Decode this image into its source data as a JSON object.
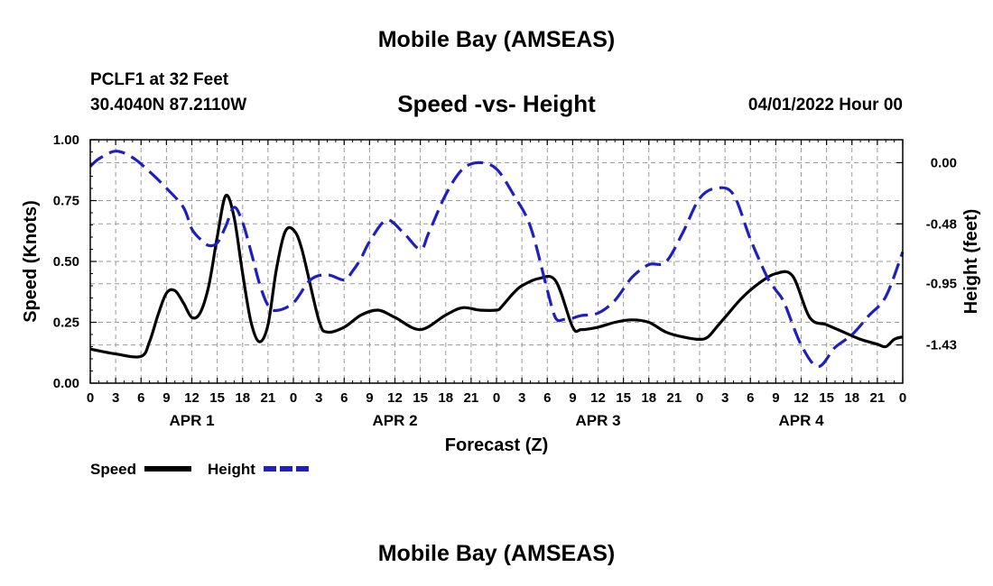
{
  "page": {
    "title_top": "Mobile Bay (AMSEAS)",
    "title_bottom": "Mobile Bay (AMSEAS)",
    "station": "PCLF1 at 32 Feet",
    "coords": "30.4040N  87.2110W",
    "datetime": "04/01/2022 Hour 00"
  },
  "colors": {
    "speed": "#000000",
    "height": "#1f1fc0",
    "grid": "#9a9a9a"
  },
  "chart_data": {
    "type": "line",
    "title": "Speed -vs- Height",
    "xlabel": "Forecast (Z)",
    "ylabel_left": "Speed (Knots)",
    "ylabel_right": "Height (feet)",
    "x_unit": "forecast hour",
    "xlim": [
      0,
      96
    ],
    "ylim_left": [
      0,
      1.0
    ],
    "ylim_right": [
      -1.73,
      0.18
    ],
    "x_ticks": [
      0,
      3,
      6,
      9,
      12,
      15,
      18,
      21,
      24,
      27,
      30,
      33,
      36,
      39,
      42,
      45,
      48,
      51,
      54,
      57,
      60,
      63,
      66,
      69,
      72,
      75,
      78,
      81,
      84,
      87,
      90,
      93,
      96
    ],
    "x_tick_labels": [
      "0",
      "3",
      "6",
      "9",
      "12",
      "15",
      "18",
      "21",
      "0",
      "3",
      "6",
      "9",
      "12",
      "15",
      "18",
      "21",
      "0",
      "3",
      "6",
      "9",
      "12",
      "15",
      "18",
      "21",
      "0",
      "3",
      "6",
      "9",
      "12",
      "15",
      "18",
      "21",
      "0"
    ],
    "day_labels": [
      {
        "label": "APR 1",
        "hour": 12
      },
      {
        "label": "APR 2",
        "hour": 36
      },
      {
        "label": "APR 3",
        "hour": 60
      },
      {
        "label": "APR 4",
        "hour": 84
      }
    ],
    "y_left_ticks": [
      0,
      0.25,
      0.5,
      0.75,
      1.0
    ],
    "y_left_tick_labels": [
      "0.00",
      "0.25",
      "0.50",
      "0.75",
      "1.00"
    ],
    "y_right_ticks": [
      0,
      -0.48,
      -0.95,
      -1.43
    ],
    "y_right_tick_labels": [
      "0.00",
      "-0.48",
      "-0.95",
      "-1.43"
    ],
    "legend": [
      "Speed",
      "Height"
    ],
    "series": [
      {
        "name": "Speed",
        "axis": "left",
        "style": "solid",
        "x": [
          0,
          3,
          6,
          7,
          8,
          9,
          10,
          11,
          12,
          13,
          14,
          15,
          16,
          17,
          18,
          19,
          20,
          21,
          22,
          23,
          24,
          25,
          27,
          28,
          30,
          32,
          34,
          36,
          39,
          42,
          44,
          46,
          48,
          48.5,
          49,
          50,
          51,
          53,
          55,
          57,
          58,
          60,
          62,
          64,
          66,
          68,
          70,
          72,
          73,
          74,
          75,
          77,
          79,
          81,
          83,
          85,
          87,
          89,
          91,
          93,
          94,
          95,
          96
        ],
        "values": [
          0.14,
          0.12,
          0.11,
          0.17,
          0.28,
          0.37,
          0.38,
          0.33,
          0.27,
          0.29,
          0.4,
          0.6,
          0.77,
          0.68,
          0.45,
          0.25,
          0.17,
          0.24,
          0.47,
          0.62,
          0.63,
          0.55,
          0.26,
          0.21,
          0.23,
          0.28,
          0.3,
          0.27,
          0.22,
          0.28,
          0.31,
          0.3,
          0.3,
          0.31,
          0.33,
          0.37,
          0.4,
          0.43,
          0.42,
          0.23,
          0.22,
          0.23,
          0.25,
          0.26,
          0.25,
          0.21,
          0.19,
          0.18,
          0.19,
          0.23,
          0.27,
          0.35,
          0.41,
          0.45,
          0.44,
          0.27,
          0.24,
          0.21,
          0.18,
          0.16,
          0.15,
          0.18,
          0.19
        ]
      },
      {
        "name": "Height",
        "axis": "right",
        "style": "dashed",
        "x": [
          0,
          1,
          3,
          5,
          7,
          9,
          11,
          12,
          13,
          14,
          15,
          16,
          17,
          18,
          19,
          20,
          21,
          22,
          24,
          26,
          28,
          30,
          31,
          32,
          33,
          35,
          37,
          39,
          40,
          42,
          44,
          46,
          48,
          50,
          52,
          54,
          55,
          56,
          57,
          58,
          60,
          62,
          64,
          66,
          68,
          70,
          72,
          74,
          76,
          78,
          80,
          81,
          82,
          84,
          86,
          88,
          90,
          92,
          94,
          96
        ],
        "values": [
          -0.03,
          0.03,
          0.09,
          0.04,
          -0.07,
          -0.2,
          -0.35,
          -0.52,
          -0.6,
          -0.65,
          -0.63,
          -0.5,
          -0.35,
          -0.47,
          -0.7,
          -0.95,
          -1.12,
          -1.16,
          -1.1,
          -0.92,
          -0.88,
          -0.92,
          -0.85,
          -0.75,
          -0.62,
          -0.45,
          -0.55,
          -0.68,
          -0.55,
          -0.25,
          -0.05,
          0.0,
          -0.05,
          -0.25,
          -0.5,
          -1.0,
          -1.22,
          -1.23,
          -1.22,
          -1.2,
          -1.18,
          -1.08,
          -0.9,
          -0.8,
          -0.78,
          -0.55,
          -0.28,
          -0.2,
          -0.25,
          -0.6,
          -0.9,
          -1.0,
          -1.1,
          -1.43,
          -1.6,
          -1.45,
          -1.35,
          -1.2,
          -1.05,
          -0.7
        ]
      }
    ]
  }
}
